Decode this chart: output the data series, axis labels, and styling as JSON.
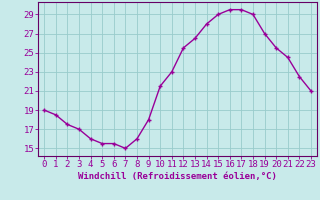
{
  "hours": [
    0,
    1,
    2,
    3,
    4,
    5,
    6,
    7,
    8,
    9,
    10,
    11,
    12,
    13,
    14,
    15,
    16,
    17,
    18,
    19,
    20,
    21,
    22,
    23
  ],
  "values": [
    19.0,
    18.5,
    17.5,
    17.0,
    16.0,
    15.5,
    15.5,
    15.0,
    16.0,
    18.0,
    21.5,
    23.0,
    25.5,
    26.5,
    28.0,
    29.0,
    29.5,
    29.5,
    29.0,
    27.0,
    25.5,
    24.5,
    22.5,
    21.0
  ],
  "line_color": "#990099",
  "marker": "+",
  "marker_size": 3,
  "bg_color": "#c8eaea",
  "grid_color": "#99cccc",
  "xlabel": "Windchill (Refroidissement éolien,°C)",
  "ytick_labels": [
    "15",
    "17",
    "19",
    "21",
    "23",
    "25",
    "27",
    "29"
  ],
  "ytick_values": [
    15,
    17,
    19,
    21,
    23,
    25,
    27,
    29
  ],
  "xlim": [
    -0.5,
    23.5
  ],
  "ylim": [
    14.2,
    30.3
  ],
  "axis_color": "#660066",
  "tick_color": "#990099",
  "xlabel_color": "#990099",
  "xlabel_fontsize": 6.5,
  "tick_fontsize": 6.5,
  "linewidth": 1.0,
  "markeredgewidth": 1.0
}
